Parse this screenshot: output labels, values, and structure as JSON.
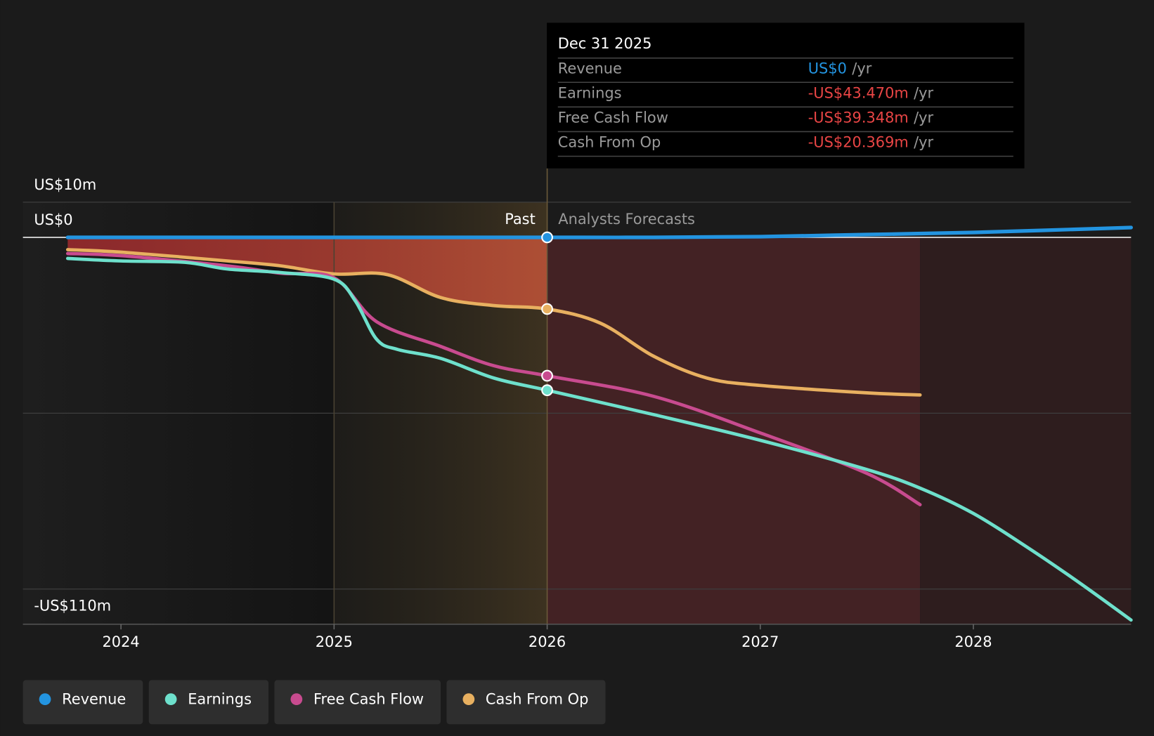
{
  "chart_data": {
    "type": "line",
    "xlim": [
      2023.54,
      2028.74
    ],
    "ylim": [
      -110,
      10
    ],
    "xticks": [
      2024,
      2025,
      2026,
      2027,
      2028
    ],
    "yticks": [
      {
        "value": 10,
        "label": "US$10m"
      },
      {
        "value": 0,
        "label": "US$0"
      },
      {
        "value": -110,
        "label": "-US$110m"
      }
    ],
    "ygrid": [
      -50,
      -100
    ],
    "past_start": 2025,
    "forecast_start": 2026,
    "past_label": "Past",
    "forecast_label": "Analysts Forecasts",
    "series": [
      {
        "name": "Revenue",
        "color": "#2394e0",
        "x": [
          2023.75,
          2024.5,
          2025.0,
          2025.5,
          2026.0,
          2026.5,
          2027.0,
          2027.5,
          2028.0,
          2028.74
        ],
        "values": [
          0,
          0,
          0,
          0,
          0,
          0,
          0.2,
          0.8,
          1.4,
          2.8
        ]
      },
      {
        "name": "Earnings",
        "color": "#6ee0cc",
        "x": [
          2023.75,
          2024.0,
          2024.3,
          2024.5,
          2024.75,
          2025.0,
          2025.1,
          2025.2,
          2025.3,
          2025.5,
          2025.75,
          2026.0,
          2026.5,
          2027.0,
          2027.5,
          2027.75,
          2028.0,
          2028.25,
          2028.5,
          2028.74
        ],
        "values": [
          -6.0,
          -6.7,
          -7.1,
          -9.0,
          -10.0,
          -11.9,
          -18.1,
          -29.0,
          -31.9,
          -34.4,
          -40.0,
          -43.47,
          -50.4,
          -57.7,
          -66.0,
          -71.3,
          -78.5,
          -88.0,
          -98.3,
          -108.8
        ]
      },
      {
        "name": "Free Cash Flow",
        "color": "#c84b8f",
        "x": [
          2023.75,
          2024.0,
          2024.5,
          2024.75,
          2025.0,
          2025.2,
          2025.5,
          2025.75,
          2026.0,
          2026.5,
          2027.0,
          2027.5,
          2027.75
        ],
        "values": [
          -4.6,
          -5.2,
          -8.1,
          -10.2,
          -11.5,
          -24.0,
          -31.0,
          -36.5,
          -39.348,
          -45.2,
          -55.6,
          -67.1,
          -76.0
        ]
      },
      {
        "name": "Cash From Op",
        "color": "#e8b060",
        "x": [
          2023.75,
          2024.0,
          2024.5,
          2024.75,
          2025.0,
          2025.25,
          2025.5,
          2025.75,
          2026.0,
          2026.25,
          2026.5,
          2026.75,
          2027.0,
          2027.5,
          2027.75
        ],
        "values": [
          -3.5,
          -4.2,
          -6.7,
          -8.1,
          -10.4,
          -10.6,
          -17.1,
          -19.4,
          -20.369,
          -24.4,
          -33.8,
          -40.0,
          -42.1,
          -44.2,
          -44.8
        ]
      }
    ],
    "tooltip": {
      "title": "Dec 31 2025",
      "rows": [
        {
          "label": "Revenue",
          "value": 0,
          "value_label": "US$0",
          "suffix": "/yr"
        },
        {
          "label": "Earnings",
          "value": -43.47,
          "value_label": "-US$43.470m",
          "suffix": "/yr"
        },
        {
          "label": "Free Cash Flow",
          "value": -39.348,
          "value_label": "-US$39.348m",
          "suffix": "/yr"
        },
        {
          "label": "Cash From Op",
          "value": -20.369,
          "value_label": "-US$20.369m",
          "suffix": "/yr"
        }
      ]
    }
  }
}
